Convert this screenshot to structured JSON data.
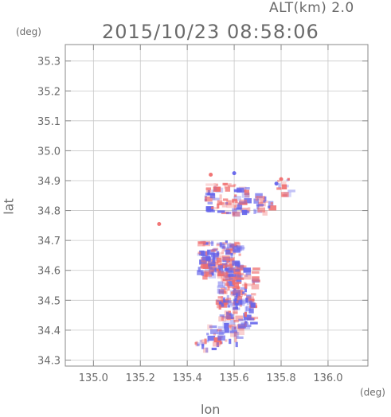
{
  "header": {
    "alt_label": "ALT(km)  2.0",
    "time_label": "2015/10/23 08:58:06"
  },
  "axes": {
    "y_unit": "(deg)",
    "x_unit": "(deg)",
    "y_title": "lat",
    "x_title": "lon"
  },
  "chart_data": {
    "type": "heatmap",
    "title": "2015/10/23 08:58:06",
    "subtitle": "ALT(km)  2.0",
    "xlabel": "lon",
    "ylabel": "lat",
    "x_unit": "(deg)",
    "y_unit": "(deg)",
    "xlim": [
      134.88,
      136.17
    ],
    "ylim": [
      34.28,
      35.355
    ],
    "x_ticks": [
      "135.0",
      "135.2",
      "135.4",
      "135.6",
      "135.8",
      "136.0"
    ],
    "x_tick_values": [
      135.0,
      135.2,
      135.4,
      135.6,
      135.8,
      136.0
    ],
    "y_ticks": [
      "34.3",
      "34.4",
      "34.5",
      "34.6",
      "34.7",
      "34.8",
      "34.9",
      "35.0",
      "35.1",
      "35.2",
      "35.3"
    ],
    "y_tick_values": [
      34.3,
      34.4,
      34.5,
      34.6,
      34.7,
      34.8,
      34.9,
      35.0,
      35.1,
      35.2,
      35.3
    ],
    "grid": true,
    "colors": {
      "positive": "#f08080",
      "negative": "#6f6ff0",
      "frame": "#8a8a8a",
      "grid": "#c8c8c8"
    },
    "clusters": [
      {
        "lon": 135.52,
        "lat": 34.845,
        "dlon": 0.055,
        "dlat": 0.05,
        "n": 45
      },
      {
        "lon": 135.62,
        "lat": 34.84,
        "dlon": 0.04,
        "dlat": 0.05,
        "n": 35
      },
      {
        "lon": 135.72,
        "lat": 34.83,
        "dlon": 0.04,
        "dlat": 0.03,
        "n": 20
      },
      {
        "lon": 135.8,
        "lat": 34.88,
        "dlon": 0.03,
        "dlat": 0.03,
        "n": 12
      },
      {
        "lon": 135.53,
        "lat": 34.64,
        "dlon": 0.09,
        "dlat": 0.06,
        "n": 160
      },
      {
        "lon": 135.6,
        "lat": 34.55,
        "dlon": 0.08,
        "dlat": 0.06,
        "n": 110
      },
      {
        "lon": 135.6,
        "lat": 34.46,
        "dlon": 0.07,
        "dlat": 0.05,
        "n": 70
      },
      {
        "lon": 135.55,
        "lat": 34.39,
        "dlon": 0.07,
        "dlat": 0.03,
        "n": 30
      },
      {
        "lon": 135.47,
        "lat": 34.36,
        "dlon": 0.04,
        "dlat": 0.02,
        "n": 14
      }
    ],
    "isolated_points": [
      {
        "lon": 135.28,
        "lat": 34.755,
        "v": 1
      },
      {
        "lon": 135.5,
        "lat": 34.92,
        "v": 1
      },
      {
        "lon": 135.6,
        "lat": 34.925,
        "v": -1
      },
      {
        "lon": 135.8,
        "lat": 34.905,
        "v": 1
      },
      {
        "lon": 135.78,
        "lat": 34.89,
        "v": -1
      }
    ]
  }
}
